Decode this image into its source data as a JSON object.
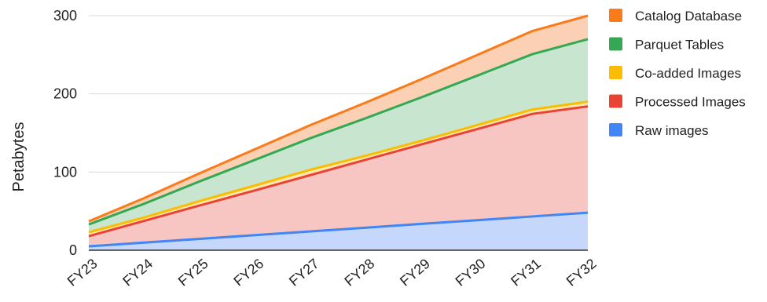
{
  "chart_data": {
    "type": "area",
    "stacked": true,
    "categories": [
      "FY23",
      "FY24",
      "FY25",
      "FY26",
      "FY27",
      "FY28",
      "FY29",
      "FY30",
      "FY31",
      "FY32"
    ],
    "ylabel": "Petabytes",
    "ylim": [
      0,
      300
    ],
    "yticks": [
      0,
      100,
      200,
      300
    ],
    "grid": true,
    "legend_position": "right",
    "series": [
      {
        "name": "Raw images",
        "color": "#4285F4",
        "fill": "#c5d8fb",
        "values": [
          5,
          9.8,
          14.6,
          19.3,
          24.1,
          28.9,
          33.7,
          38.4,
          43.2,
          48
        ]
      },
      {
        "name": "Processed Images",
        "color": "#EA4335",
        "fill": "#f8c6c2",
        "values": [
          13,
          27.8,
          42.6,
          57.3,
          72.1,
          86.9,
          101.7,
          116.4,
          131.2,
          136
        ]
      },
      {
        "name": "Co-added Images",
        "color": "#FBBC04",
        "fill": "#fde9ad",
        "values": [
          5,
          4.3,
          5.7,
          6.3,
          6.8,
          5.2,
          4.6,
          5.2,
          5.6,
          6
        ]
      },
      {
        "name": "Parquet Tables",
        "color": "#34A853",
        "fill": "#c8e6cf",
        "values": [
          10,
          17.6,
          25.2,
          32.8,
          40.4,
          48,
          55.6,
          63.2,
          70.8,
          80
        ]
      },
      {
        "name": "Catalog Database",
        "color": "#FA7B17",
        "fill": "#fcd0b4",
        "values": [
          4,
          7.2,
          10.4,
          13.6,
          16.8,
          20,
          23.2,
          26.4,
          29.6,
          30
        ]
      }
    ],
    "legend_order": [
      "Catalog Database",
      "Parquet Tables",
      "Co-added Images",
      "Processed Images",
      "Raw images"
    ]
  }
}
